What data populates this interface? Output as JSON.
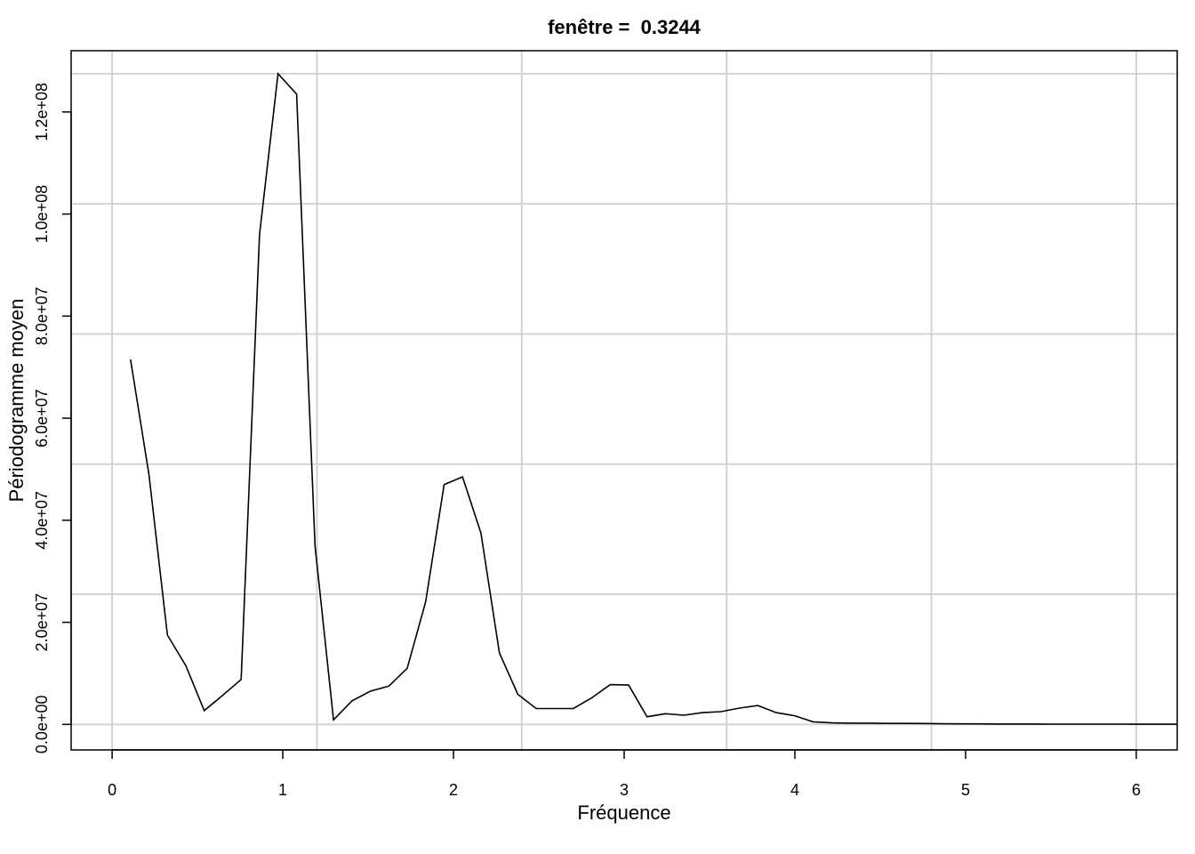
{
  "chart_data": {
    "type": "line",
    "title": "fenêtre =  0.3244",
    "xlabel": "Fréquence",
    "ylabel": "Périodogramme moyen",
    "xlim": [
      -0.24,
      6.24
    ],
    "ylim": [
      -5000000,
      132000000
    ],
    "x_ticks": [
      0,
      1,
      2,
      3,
      4,
      5,
      6
    ],
    "x_tick_labels": [
      "0",
      "1",
      "2",
      "3",
      "4",
      "5",
      "6"
    ],
    "y_ticks": [
      0,
      20000000,
      40000000,
      60000000,
      80000000,
      100000000,
      120000000
    ],
    "y_tick_labels": [
      "0.0e+00",
      "2.0e+07",
      "4.0e+07",
      "6.0e+07",
      "8.0e+07",
      "1.0e+08",
      "1.2e+08"
    ],
    "grid": true,
    "grid_x": [
      0,
      1.2,
      2.4,
      3.6,
      4.8,
      6.0
    ],
    "grid_y": [
      0,
      25500000,
      51000000,
      76500000,
      102000000,
      127500000
    ],
    "series": [
      {
        "x": [
          0.108,
          0.216,
          0.324,
          0.432,
          0.54,
          0.648,
          0.756,
          0.864,
          0.972,
          1.081,
          1.189,
          1.297,
          1.405,
          1.513,
          1.621,
          1.729,
          1.837,
          1.945,
          2.053,
          2.161,
          2.269,
          2.377,
          2.485,
          2.594,
          2.702,
          2.81,
          2.918,
          3.026,
          3.134,
          3.242,
          3.35,
          3.458,
          3.566,
          3.675,
          3.783,
          3.891,
          3.999,
          4.107,
          4.215,
          4.323,
          4.431,
          4.539,
          4.647,
          4.755,
          4.863,
          4.971,
          5.079,
          5.188,
          5.296,
          5.404,
          5.512,
          5.62,
          5.728,
          5.836,
          5.944,
          6.052,
          6.16,
          6.24
        ],
        "values": [
          71500000,
          49000000,
          17500000,
          11500000,
          2700000,
          5700000,
          8800000,
          96000000,
          127500000,
          123500000,
          35000000,
          900000,
          4600000,
          6500000,
          7500000,
          11000000,
          24000000,
          47000000,
          48500000,
          37500000,
          14000000,
          5900000,
          3100000,
          3100000,
          3100000,
          5200000,
          7800000,
          7700000,
          1500000,
          2100000,
          1800000,
          2300000,
          2500000,
          3200000,
          3700000,
          2300000,
          1700000,
          500000,
          300000,
          250000,
          250000,
          200000,
          200000,
          180000,
          120000,
          100000,
          100000,
          80000,
          80000,
          70000,
          60000,
          60000,
          50000,
          50000,
          50000,
          40000,
          40000,
          40000
        ]
      }
    ]
  }
}
